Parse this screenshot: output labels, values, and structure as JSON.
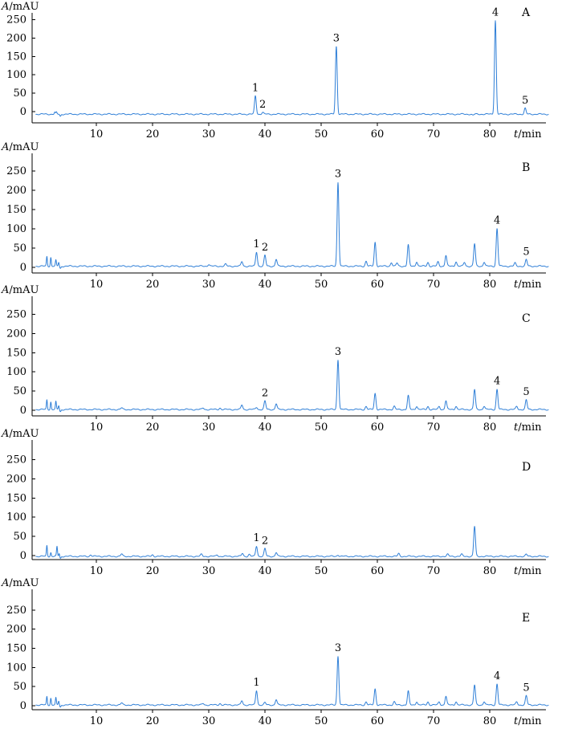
{
  "chart_data": [
    {
      "type": "line",
      "panel": "A",
      "ylabel_italic": "A",
      "ylabel_unit": "/mAU",
      "xlabel_italic": "t",
      "xlabel_unit": "/min",
      "yticks": [
        0,
        50,
        100,
        150,
        200,
        250
      ],
      "xticks": [
        10,
        20,
        30,
        40,
        50,
        60,
        70,
        80
      ],
      "xlim": [
        0,
        91
      ],
      "ylim": [
        -15,
        280
      ],
      "baseline": -7,
      "peaks": [
        {
          "label": "1",
          "t": 38.3,
          "h": 50
        },
        {
          "label": "2",
          "t": 39.6,
          "h": 5
        },
        {
          "label": "3",
          "t": 52.7,
          "h": 185
        },
        {
          "label": "4",
          "t": 81.0,
          "h": 255
        },
        {
          "label": "5",
          "t": 86.3,
          "h": 16
        }
      ],
      "minor_peaks": [
        {
          "t": 2.6,
          "h": 5
        },
        {
          "t": 2.9,
          "h": 5
        },
        {
          "t": 77.0,
          "h": -3
        }
      ]
    },
    {
      "type": "line",
      "panel": "B",
      "ylabel_italic": "A",
      "ylabel_unit": "/mAU",
      "xlabel_italic": "t",
      "xlabel_unit": "/min",
      "yticks": [
        0,
        50,
        100,
        150,
        200,
        250
      ],
      "xticks": [
        10,
        20,
        30,
        40,
        50,
        60,
        70,
        80
      ],
      "xlim": [
        0,
        91
      ],
      "ylim": [
        -10,
        280
      ],
      "baseline": 3,
      "peaks": [
        {
          "label": "1",
          "t": 38.5,
          "h": 37
        },
        {
          "label": "2",
          "t": 40.0,
          "h": 28
        },
        {
          "label": "3",
          "t": 53.0,
          "h": 218
        },
        {
          "label": "4",
          "t": 81.3,
          "h": 98
        },
        {
          "label": "5",
          "t": 86.5,
          "h": 17
        }
      ],
      "minor_peaks": [
        {
          "t": 1.2,
          "h": 25
        },
        {
          "t": 1.9,
          "h": 23
        },
        {
          "t": 2.8,
          "h": 15
        },
        {
          "t": 3.3,
          "h": 10
        },
        {
          "t": 30,
          "h": 5
        },
        {
          "t": 33,
          "h": 5
        },
        {
          "t": 35.9,
          "h": 12
        },
        {
          "t": 42.0,
          "h": 18
        },
        {
          "t": 58.0,
          "h": 13
        },
        {
          "t": 59.6,
          "h": 62
        },
        {
          "t": 62.5,
          "h": 10
        },
        {
          "t": 63.5,
          "h": 8
        },
        {
          "t": 65.5,
          "h": 55
        },
        {
          "t": 67.0,
          "h": 12
        },
        {
          "t": 69.0,
          "h": 10
        },
        {
          "t": 70.8,
          "h": 11
        },
        {
          "t": 72.2,
          "h": 28
        },
        {
          "t": 74.0,
          "h": 12
        },
        {
          "t": 75.5,
          "h": 10
        },
        {
          "t": 77.3,
          "h": 58
        },
        {
          "t": 79.0,
          "h": 11
        },
        {
          "t": 84.5,
          "h": 8
        }
      ]
    },
    {
      "type": "line",
      "panel": "C",
      "ylabel_italic": "A",
      "ylabel_unit": "/mAU",
      "xlabel_italic": "t",
      "xlabel_unit": "/min",
      "yticks": [
        0,
        50,
        100,
        150,
        200,
        250
      ],
      "xticks": [
        10,
        20,
        30,
        40,
        50,
        60,
        70,
        80
      ],
      "xlim": [
        0,
        91
      ],
      "ylim": [
        -10,
        280
      ],
      "baseline": 2,
      "peaks": [
        {
          "label": "2",
          "t": 40.0,
          "h": 22
        },
        {
          "label": "3",
          "t": 53.0,
          "h": 130
        },
        {
          "label": "4",
          "t": 81.3,
          "h": 53
        },
        {
          "label": "5",
          "t": 86.5,
          "h": 25
        }
      ],
      "minor_peaks": [
        {
          "t": 1.2,
          "h": 25
        },
        {
          "t": 1.9,
          "h": 20
        },
        {
          "t": 2.8,
          "h": 20
        },
        {
          "t": 3.3,
          "h": 10
        },
        {
          "t": 14.5,
          "h": 4
        },
        {
          "t": 29,
          "h": 4
        },
        {
          "t": 32,
          "h": 4
        },
        {
          "t": 35.9,
          "h": 12
        },
        {
          "t": 38.5,
          "h": 6
        },
        {
          "t": 42.0,
          "h": 15
        },
        {
          "t": 58.0,
          "h": 8
        },
        {
          "t": 59.6,
          "h": 42
        },
        {
          "t": 63.0,
          "h": 8
        },
        {
          "t": 65.5,
          "h": 36
        },
        {
          "t": 67.0,
          "h": 9
        },
        {
          "t": 69.0,
          "h": 8
        },
        {
          "t": 71.0,
          "h": 8
        },
        {
          "t": 72.2,
          "h": 23
        },
        {
          "t": 74.0,
          "h": 9
        },
        {
          "t": 77.3,
          "h": 52
        },
        {
          "t": 79.0,
          "h": 9
        },
        {
          "t": 84.8,
          "h": 8
        }
      ]
    },
    {
      "type": "line",
      "panel": "D",
      "ylabel_italic": "A",
      "ylabel_unit": "/mAU",
      "xlabel_italic": "t",
      "xlabel_unit": "/min",
      "yticks": [
        0,
        50,
        100,
        150,
        200,
        250
      ],
      "xticks": [
        10,
        20,
        30,
        40,
        50,
        60,
        70,
        80
      ],
      "xlim": [
        0,
        91
      ],
      "ylim": [
        -10,
        280
      ],
      "baseline": -2,
      "peaks": [
        {
          "label": "1",
          "t": 38.5,
          "h": 27
        },
        {
          "label": "2",
          "t": 40.0,
          "h": 20
        }
      ],
      "minor_peaks": [
        {
          "t": 1.2,
          "h": 28
        },
        {
          "t": 1.9,
          "h": 10
        },
        {
          "t": 3.0,
          "h": 25
        },
        {
          "t": 3.4,
          "h": 8
        },
        {
          "t": 9,
          "h": 4
        },
        {
          "t": 14.5,
          "h": 6
        },
        {
          "t": 20,
          "h": 4
        },
        {
          "t": 28.7,
          "h": 5
        },
        {
          "t": 31.5,
          "h": 4
        },
        {
          "t": 36.0,
          "h": 8
        },
        {
          "t": 37.2,
          "h": 5
        },
        {
          "t": 42.0,
          "h": 10
        },
        {
          "t": 53.0,
          "h": 4
        },
        {
          "t": 63.8,
          "h": 7
        },
        {
          "t": 72.5,
          "h": 5
        },
        {
          "t": 75.0,
          "h": 5
        },
        {
          "t": 77.3,
          "h": 78
        },
        {
          "t": 86.5,
          "h": 5
        }
      ]
    },
    {
      "type": "line",
      "panel": "E",
      "ylabel_italic": "A",
      "ylabel_unit": "/mAU",
      "xlabel_italic": "t",
      "xlabel_unit": "/min",
      "yticks": [
        0,
        50,
        100,
        150,
        200,
        250
      ],
      "xticks": [
        10,
        20,
        30,
        40,
        50,
        60,
        70,
        80
      ],
      "xlim": [
        0,
        91
      ],
      "ylim": [
        -10,
        280
      ],
      "baseline": 2,
      "peaks": [
        {
          "label": "1",
          "t": 38.5,
          "h": 38
        },
        {
          "label": "3",
          "t": 53.0,
          "h": 128
        },
        {
          "label": "4",
          "t": 81.3,
          "h": 55
        },
        {
          "label": "5",
          "t": 86.5,
          "h": 24
        }
      ],
      "minor_peaks": [
        {
          "t": 1.2,
          "h": 22
        },
        {
          "t": 1.9,
          "h": 18
        },
        {
          "t": 2.8,
          "h": 18
        },
        {
          "t": 3.3,
          "h": 10
        },
        {
          "t": 14.5,
          "h": 5
        },
        {
          "t": 29,
          "h": 4
        },
        {
          "t": 32,
          "h": 4
        },
        {
          "t": 35.9,
          "h": 11
        },
        {
          "t": 40.0,
          "h": 6
        },
        {
          "t": 42.0,
          "h": 14
        },
        {
          "t": 58.0,
          "h": 8
        },
        {
          "t": 59.6,
          "h": 42
        },
        {
          "t": 63.0,
          "h": 8
        },
        {
          "t": 65.5,
          "h": 36
        },
        {
          "t": 67.0,
          "h": 9
        },
        {
          "t": 69.0,
          "h": 8
        },
        {
          "t": 71.0,
          "h": 8
        },
        {
          "t": 72.2,
          "h": 23
        },
        {
          "t": 74.0,
          "h": 9
        },
        {
          "t": 77.3,
          "h": 52
        },
        {
          "t": 79.0,
          "h": 9
        },
        {
          "t": 84.8,
          "h": 8
        }
      ]
    }
  ]
}
